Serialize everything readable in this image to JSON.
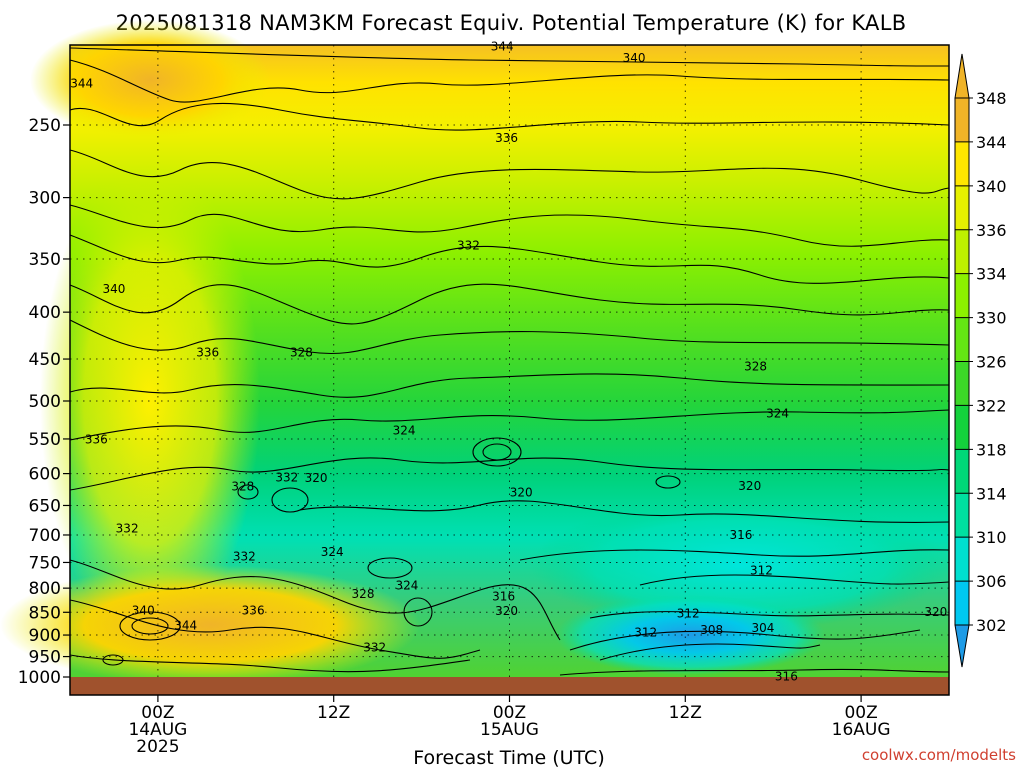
{
  "chart_data": {
    "type": "heatmap",
    "title": "2025081318 NAM3KM Forecast Equiv. Potential Temperature (K) for KALB",
    "xlabel": "Forecast Time (UTC)",
    "ylabel": "",
    "credit": "coolwx.com/modelts",
    "x_ticks": [
      {
        "hour": 6,
        "line1": "00Z",
        "line2": "14AUG",
        "line3": "2025"
      },
      {
        "hour": 18,
        "line1": "12Z",
        "line2": "",
        "line3": ""
      },
      {
        "hour": 30,
        "line1": "00Z",
        "line2": "15AUG",
        "line3": ""
      },
      {
        "hour": 42,
        "line1": "12Z",
        "line2": "",
        "line3": ""
      },
      {
        "hour": 54,
        "line1": "00Z",
        "line2": "16AUG",
        "line3": ""
      }
    ],
    "xlim_hours": [
      0,
      60
    ],
    "y_ticks": [
      250,
      300,
      350,
      400,
      450,
      500,
      550,
      600,
      650,
      700,
      750,
      800,
      850,
      900,
      950,
      1000
    ],
    "ylim_hPa": [
      1000,
      200
    ],
    "grid": "dotted",
    "colorbar": {
      "levels": [
        302,
        306,
        310,
        314,
        318,
        322,
        326,
        330,
        334,
        336,
        340,
        344,
        348
      ],
      "colors": [
        "#1E9BE6",
        "#00C8F0",
        "#00E0D0",
        "#00E0A0",
        "#00D878",
        "#14D23C",
        "#3CD828",
        "#64E614",
        "#8CF000",
        "#BEF000",
        "#E6F000",
        "#FFE600",
        "#F0B428"
      ]
    },
    "contour_labels": [
      {
        "value": "344",
        "hour": 0.8,
        "p": 225
      },
      {
        "value": "344",
        "hour": 29.5,
        "p": 205
      },
      {
        "value": "340",
        "hour": 38.5,
        "p": 211
      },
      {
        "value": "336",
        "hour": 29.8,
        "p": 258
      },
      {
        "value": "332",
        "hour": 27.2,
        "p": 338
      },
      {
        "value": "340",
        "hour": 3.0,
        "p": 377
      },
      {
        "value": "336",
        "hour": 9.4,
        "p": 442
      },
      {
        "value": "328",
        "hour": 15.8,
        "p": 442
      },
      {
        "value": "328",
        "hour": 46.8,
        "p": 458
      },
      {
        "value": "324",
        "hour": 48.3,
        "p": 515
      },
      {
        "value": "336",
        "hour": 1.8,
        "p": 550
      },
      {
        "value": "324",
        "hour": 22.8,
        "p": 538
      },
      {
        "value": "328",
        "hour": 11.8,
        "p": 619
      },
      {
        "value": "332",
        "hour": 14.8,
        "p": 605
      },
      {
        "value": "320",
        "hour": 16.8,
        "p": 606
      },
      {
        "value": "320",
        "hour": 30.8,
        "p": 628
      },
      {
        "value": "320",
        "hour": 46.4,
        "p": 618
      },
      {
        "value": "332",
        "hour": 3.9,
        "p": 688
      },
      {
        "value": "316",
        "hour": 45.8,
        "p": 699
      },
      {
        "value": "332",
        "hour": 11.9,
        "p": 738
      },
      {
        "value": "324",
        "hour": 17.9,
        "p": 730
      },
      {
        "value": "312",
        "hour": 47.2,
        "p": 764
      },
      {
        "value": "324",
        "hour": 23.0,
        "p": 794
      },
      {
        "value": "328",
        "hour": 20.0,
        "p": 811
      },
      {
        "value": "316",
        "hour": 29.6,
        "p": 816
      },
      {
        "value": "340",
        "hour": 5.0,
        "p": 845
      },
      {
        "value": "336",
        "hour": 12.5,
        "p": 845
      },
      {
        "value": "320",
        "hour": 29.8,
        "p": 846
      },
      {
        "value": "312",
        "hour": 42.2,
        "p": 852
      },
      {
        "value": "320",
        "hour": 59.1,
        "p": 848
      },
      {
        "value": "344",
        "hour": 7.9,
        "p": 878
      },
      {
        "value": "308",
        "hour": 43.8,
        "p": 888
      },
      {
        "value": "304",
        "hour": 47.3,
        "p": 883
      },
      {
        "value": "312",
        "hour": 39.3,
        "p": 893
      },
      {
        "value": "332",
        "hour": 20.8,
        "p": 928
      },
      {
        "value": "316",
        "hour": 48.9,
        "p": 998
      }
    ],
    "contour_lines_K": [
      344,
      340,
      336,
      332,
      328,
      324,
      320,
      316,
      312,
      308,
      304
    ]
  }
}
